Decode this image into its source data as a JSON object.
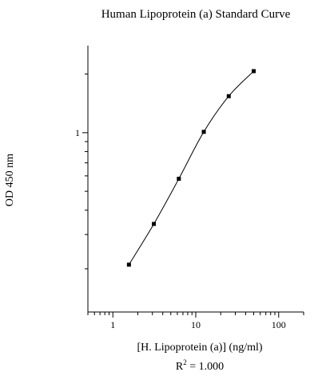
{
  "chart_data": {
    "type": "line",
    "title": "Human Lipoprotein (a) Standard Curve",
    "xlabel": "[H. Lipoprotein (a)] (ng/ml)",
    "ylabel": "OD 450 nm",
    "x_scale": "log",
    "y_scale": "log",
    "xlim": [
      0.5,
      200
    ],
    "ylim": [
      0.12,
      2.8
    ],
    "x_ticks": [
      {
        "value": 1,
        "label": "1"
      },
      {
        "value": 10,
        "label": "10"
      },
      {
        "value": 100,
        "label": "100"
      }
    ],
    "y_ticks": [
      {
        "value": 1,
        "label": "1"
      }
    ],
    "grid": false,
    "legend": "none",
    "series": [
      {
        "x": [
          1.5625,
          3.125,
          6.25,
          12.5,
          25,
          50
        ],
        "y": [
          0.21,
          0.34,
          0.58,
          1.01,
          1.54,
          2.07
        ],
        "marker": "square",
        "color": "#000000"
      }
    ],
    "annotation": {
      "r2_prefix": "R",
      "r2_sup": "2",
      "r2_value": " = 1.000"
    }
  }
}
